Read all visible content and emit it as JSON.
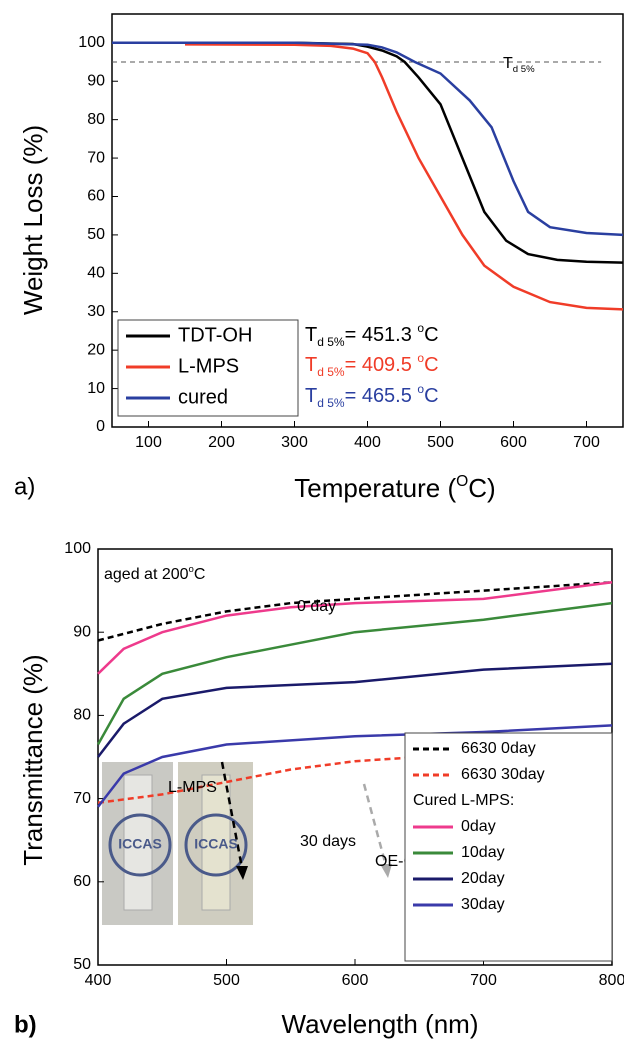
{
  "chart_data": [
    {
      "type": "line",
      "panel": "a)",
      "ylabel": "Weight Loss (%)",
      "xlabel": [
        {
          "t": "Temperature ("
        },
        {
          "t": "O",
          "s": "sup"
        },
        {
          "t": "C)"
        }
      ],
      "xlim": [
        50,
        750
      ],
      "ylim": [
        0,
        107.5
      ],
      "xticks": [
        100,
        200,
        300,
        400,
        500,
        600,
        700
      ],
      "yticks": [
        0,
        10,
        20,
        30,
        40,
        50,
        60,
        70,
        80,
        90,
        100
      ],
      "legend": "lower left",
      "hline": {
        "y": 95,
        "x": [
          50,
          720
        ],
        "label": [
          {
            "t": "T"
          },
          {
            "t": "d 5%",
            "s": "sub"
          }
        ]
      },
      "series": [
        {
          "name": "TDT-OH",
          "color": "#000000",
          "x": [
            50,
            300,
            380,
            400,
            420,
            440,
            451,
            470,
            500,
            530,
            560,
            590,
            620,
            660,
            700,
            750
          ],
          "values": [
            100,
            100,
            99.7,
            99,
            98,
            96.5,
            95,
            91,
            84,
            70,
            56,
            48.5,
            45,
            43.5,
            43,
            42.8
          ]
        },
        {
          "name": "L-MPS",
          "color": "#f03c28",
          "x": [
            150,
            300,
            350,
            380,
            400,
            410,
            420,
            440,
            470,
            500,
            530,
            560,
            600,
            650,
            700,
            750
          ],
          "values": [
            99.6,
            99.5,
            99.2,
            98.5,
            97.3,
            95,
            91,
            82,
            70,
            60,
            50,
            42,
            36.5,
            32.5,
            31,
            30.6
          ]
        },
        {
          "name": "cured",
          "color": "#2a3fa0",
          "x": [
            50,
            300,
            400,
            420,
            440,
            465,
            500,
            540,
            570,
            600,
            620,
            650,
            700,
            750
          ],
          "values": [
            100,
            100,
            99.5,
            98.8,
            97.5,
            95,
            92,
            85,
            78,
            64,
            56,
            52,
            50.5,
            50
          ]
        }
      ],
      "annotations": [
        {
          "color": "#000000",
          "parts": [
            {
              "t": "T"
            },
            {
              "t": "d 5%",
              "s": "sub"
            },
            {
              "t": "= 451.3 "
            },
            {
              "t": "o",
              "s": "sup"
            },
            {
              "t": "C"
            }
          ]
        },
        {
          "color": "#f03c28",
          "parts": [
            {
              "t": "T"
            },
            {
              "t": "d 5%",
              "s": "sub"
            },
            {
              "t": "= 409.5 "
            },
            {
              "t": "o",
              "s": "sup"
            },
            {
              "t": "C"
            }
          ]
        },
        {
          "color": "#2a3fa0",
          "parts": [
            {
              "t": "T"
            },
            {
              "t": "d 5%",
              "s": "sub"
            },
            {
              "t": "= 465.5 "
            },
            {
              "t": "o",
              "s": "sup"
            },
            {
              "t": "C"
            }
          ]
        }
      ]
    },
    {
      "type": "line",
      "panel": "b)",
      "ylabel": "Transmittance (%)",
      "xlabel": "Wavelength (nm)",
      "xlim": [
        400,
        800
      ],
      "ylim": [
        50,
        100
      ],
      "xticks": [
        400,
        500,
        600,
        700,
        800
      ],
      "yticks": [
        50,
        60,
        70,
        80,
        90,
        100
      ],
      "legend": "lower right",
      "legend_header": "Cured L-MPS:",
      "series": [
        {
          "name": "6630 0day",
          "color": "#000000",
          "dash": true,
          "x": [
            400,
            450,
            500,
            550,
            600,
            700,
            800
          ],
          "values": [
            89,
            91,
            92.5,
            93.5,
            94,
            95,
            96
          ]
        },
        {
          "name": "6630 30day",
          "color": "#f03c28",
          "dash": true,
          "x": [
            400,
            450,
            500,
            550,
            600,
            650,
            700,
            800
          ],
          "values": [
            69.5,
            70.5,
            72,
            73.5,
            74.5,
            75,
            75.3,
            75.7
          ]
        },
        {
          "name": "0day",
          "color": "#ee3a8c",
          "x": [
            400,
            420,
            450,
            500,
            550,
            600,
            700,
            800
          ],
          "values": [
            85,
            88,
            90,
            92,
            93,
            93.5,
            94,
            96
          ]
        },
        {
          "name": "10day",
          "color": "#3a8a3a",
          "x": [
            400,
            420,
            450,
            500,
            550,
            600,
            700,
            800
          ],
          "values": [
            76.5,
            82,
            85,
            87,
            88.5,
            90,
            91.5,
            93.5
          ]
        },
        {
          "name": "20day",
          "color": "#1a1a6a",
          "x": [
            400,
            420,
            450,
            500,
            600,
            700,
            800
          ],
          "values": [
            75,
            79,
            82,
            83.3,
            84,
            85.5,
            86.2
          ]
        },
        {
          "name": "30day",
          "color": "#3a3aaa",
          "x": [
            400,
            420,
            450,
            500,
            550,
            600,
            700,
            800
          ],
          "values": [
            69,
            73,
            75,
            76.5,
            77,
            77.5,
            78,
            78.8
          ]
        }
      ],
      "annotations": [
        {
          "color": "#000000",
          "parts": [
            {
              "t": "aged at 200"
            },
            {
              "t": "o",
              "s": "sup"
            },
            {
              "t": "C"
            }
          ]
        },
        {
          "color": "#000000",
          "parts": [
            {
              "t": "0 day"
            }
          ]
        },
        {
          "color": "#000000",
          "parts": [
            {
              "t": "L-MPS"
            }
          ]
        },
        {
          "color": "#000000",
          "parts": [
            {
              "t": "30 days"
            }
          ]
        },
        {
          "color": "#000000",
          "parts": [
            {
              "t": "OE-6630"
            }
          ]
        }
      ],
      "inset_texts": [
        "ICCAS",
        "ICCAS"
      ]
    }
  ]
}
